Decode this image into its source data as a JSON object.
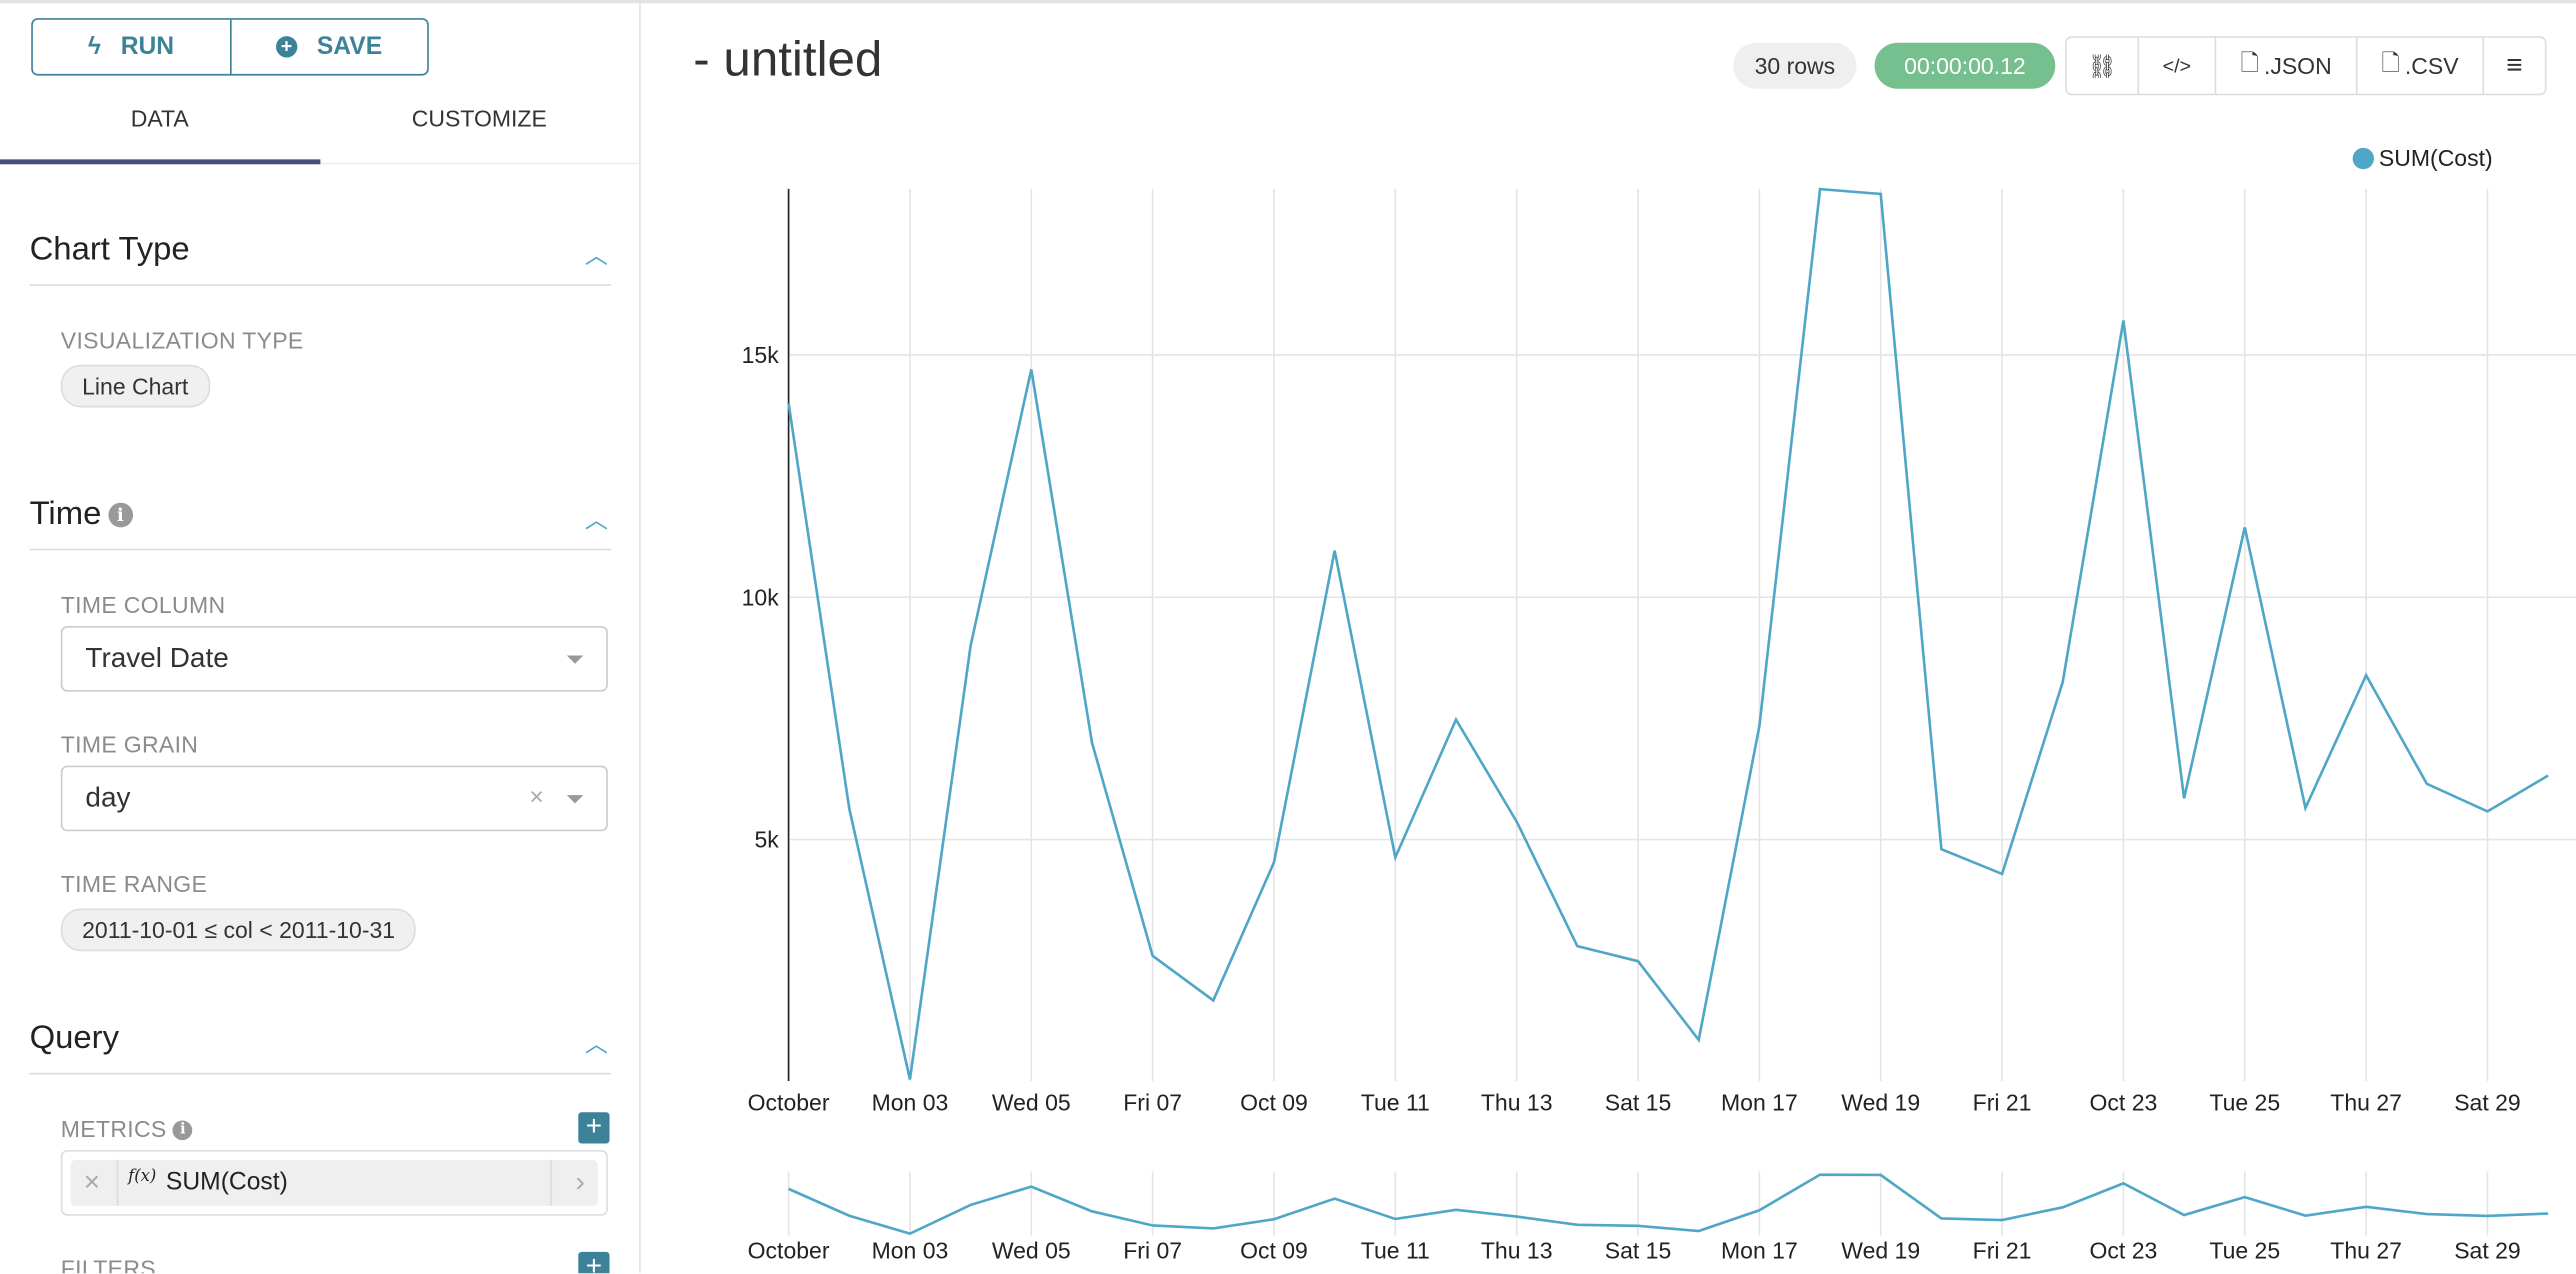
{
  "toolbar": {
    "run_label": "RUN",
    "save_label": "SAVE"
  },
  "tabs": [
    {
      "label": "DATA",
      "active": true
    },
    {
      "label": "CUSTOMIZE",
      "active": false
    }
  ],
  "sections": {
    "chart_type": {
      "title": "Chart Type",
      "viz_label": "VISUALIZATION TYPE",
      "viz_value": "Line Chart"
    },
    "time": {
      "title": "Time",
      "time_column_label": "TIME COLUMN",
      "time_column_value": "Travel Date",
      "time_grain_label": "TIME GRAIN",
      "time_grain_value": "day",
      "time_range_label": "TIME RANGE",
      "time_range_value": "2011-10-01 ≤ col < 2011-10-31"
    },
    "query": {
      "title": "Query",
      "metrics_label": "METRICS",
      "metric_fx": "f(x)",
      "metric_value": "SUM(Cost)",
      "filters_label": "FILTERS"
    }
  },
  "header": {
    "title": "- untitled",
    "rows": "30 rows",
    "duration": "00:00:00.12",
    "json_label": ".JSON",
    "csv_label": ".CSV"
  },
  "colors": {
    "accent": "#3d8299",
    "series": "#4fa6c6",
    "success": "#75c08e"
  },
  "chart_data": {
    "type": "line",
    "legend": [
      "SUM(Cost)"
    ],
    "legend_position": "top-right",
    "x": [
      "2011-10-01",
      "2011-10-02",
      "2011-10-03",
      "2011-10-04",
      "2011-10-05",
      "2011-10-06",
      "2011-10-07",
      "2011-10-08",
      "2011-10-09",
      "2011-10-10",
      "2011-10-11",
      "2011-10-12",
      "2011-10-13",
      "2011-10-14",
      "2011-10-15",
      "2011-10-16",
      "2011-10-17",
      "2011-10-18",
      "2011-10-19",
      "2011-10-20",
      "2011-10-21",
      "2011-10-22",
      "2011-10-23",
      "2011-10-24",
      "2011-10-25",
      "2011-10-26",
      "2011-10-27",
      "2011-10-28",
      "2011-10-29",
      "2011-10-30"
    ],
    "series": [
      {
        "name": "SUM(Cost)",
        "values": [
          14000,
          5640,
          50,
          9000,
          14700,
          7000,
          2600,
          1680,
          4530,
          10960,
          4630,
          7475,
          5370,
          2800,
          2490,
          865,
          7340,
          18420,
          18320,
          4800,
          4290,
          8250,
          15710,
          5850,
          11440,
          5650,
          8390,
          6150,
          5580,
          6320
        ]
      }
    ],
    "y_ticks": [
      "5k",
      "10k",
      "15k"
    ],
    "y_tick_values": [
      5000,
      10000,
      15000
    ],
    "ylim": [
      0,
      18400
    ],
    "x_ticks": [
      "October",
      "Mon 03",
      "Wed 05",
      "Fri 07",
      "Oct 09",
      "Tue 11",
      "Thu 13",
      "Sat 15",
      "Mon 17",
      "Wed 19",
      "Fri 21",
      "Oct 23",
      "Tue 25",
      "Thu 27",
      "Sat 29"
    ],
    "grid": true,
    "context_brush": true
  }
}
